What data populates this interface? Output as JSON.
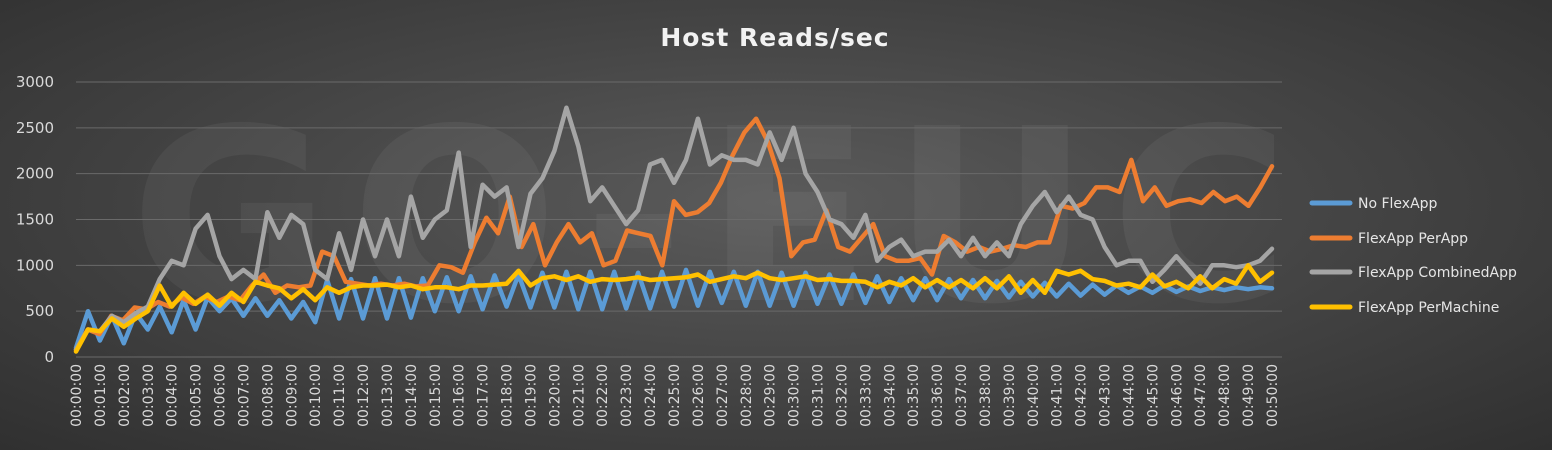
{
  "chart_data": {
    "type": "line",
    "title": "Host Reads/sec",
    "xlabel": "",
    "ylabel": "",
    "ylim": [
      0,
      3000
    ],
    "yticks": [
      0,
      500,
      1000,
      1500,
      2000,
      2500,
      3000
    ],
    "grid": true,
    "legend": "right",
    "x_tick_labels": [
      "00:00:00",
      "00:01:00",
      "00:02:00",
      "00:03:00",
      "00:04:00",
      "00:05:00",
      "00:06:00",
      "00:07:00",
      "00:08:00",
      "00:09:00",
      "00:10:00",
      "00:11:00",
      "00:12:00",
      "00:13:00",
      "00:14:00",
      "00:15:00",
      "00:16:00",
      "00:17:00",
      "00:18:00",
      "00:19:00",
      "00:20:00",
      "00:21:00",
      "00:22:00",
      "00:23:00",
      "00:24:00",
      "00:25:00",
      "00:26:00",
      "00:27:00",
      "00:28:00",
      "00:29:00",
      "00:30:00",
      "00:31:00",
      "00:32:00",
      "00:33:00",
      "00:34:00",
      "00:35:00",
      "00:36:00",
      "00:37:00",
      "00:38:00",
      "00:39:00",
      "00:40:00",
      "00:41:00",
      "00:42:00",
      "00:43:00",
      "00:44:00",
      "00:45:00",
      "00:46:00",
      "00:47:00",
      "00:48:00",
      "00:49:00",
      "00:50:00"
    ],
    "series": [
      {
        "name": "No FlexApp",
        "color": "#5b9bd5",
        "values": [
          100,
          500,
          180,
          450,
          150,
          480,
          300,
          550,
          270,
          620,
          300,
          650,
          500,
          640,
          450,
          640,
          450,
          620,
          420,
          600,
          380,
          840,
          420,
          850,
          420,
          860,
          420,
          860,
          430,
          860,
          500,
          870,
          500,
          880,
          520,
          890,
          550,
          900,
          540,
          920,
          540,
          930,
          520,
          930,
          520,
          930,
          530,
          920,
          530,
          930,
          550,
          950,
          560,
          930,
          590,
          930,
          560,
          930,
          560,
          920,
          560,
          920,
          580,
          900,
          580,
          900,
          590,
          880,
          600,
          860,
          620,
          860,
          620,
          850,
          640,
          840,
          640,
          830,
          650,
          820,
          660,
          810,
          660,
          800,
          670,
          790,
          680,
          780,
          700,
          770,
          700,
          780,
          710,
          770,
          720,
          760,
          730,
          760,
          740,
          760,
          750
        ]
      },
      {
        "name": "FlexApp PerApp",
        "color": "#ed7d31",
        "values": [
          80,
          300,
          250,
          450,
          400,
          540,
          520,
          600,
          550,
          650,
          580,
          660,
          600,
          660,
          620,
          780,
          900,
          700,
          780,
          760,
          780,
          1150,
          1100,
          820,
          800,
          780,
          800,
          780,
          800,
          770,
          780,
          1000,
          980,
          920,
          1250,
          1520,
          1350,
          1750,
          1200,
          1450,
          1000,
          1250,
          1450,
          1250,
          1350,
          1000,
          1050,
          1380,
          1350,
          1320,
          1000,
          1700,
          1550,
          1580,
          1680,
          1900,
          2200,
          2450,
          2600,
          2350,
          1950,
          1100,
          1250,
          1280,
          1600,
          1200,
          1150,
          1300,
          1450,
          1100,
          1050,
          1050,
          1080,
          900,
          1320,
          1250,
          1150,
          1200,
          1150,
          1180,
          1220,
          1200,
          1250,
          1250,
          1650,
          1620,
          1680,
          1850,
          1850,
          1800,
          2150,
          1700,
          1850,
          1650,
          1700,
          1720,
          1680,
          1800,
          1700,
          1750,
          1650,
          1850,
          2080
        ]
      },
      {
        "name": "FlexApp CombinedApp",
        "color": "#a5a5a5",
        "values": [
          80,
          300,
          280,
          450,
          380,
          480,
          550,
          850,
          1050,
          1000,
          1400,
          1550,
          1100,
          850,
          950,
          850,
          1580,
          1300,
          1550,
          1450,
          950,
          850,
          1350,
          950,
          1500,
          1100,
          1500,
          1100,
          1750,
          1300,
          1500,
          1600,
          2230,
          1200,
          1880,
          1750,
          1850,
          1200,
          1780,
          1950,
          2250,
          2720,
          2300,
          1700,
          1850,
          1650,
          1450,
          1600,
          2100,
          2150,
          1900,
          2150,
          2600,
          2100,
          2200,
          2150,
          2150,
          2100,
          2450,
          2150,
          2500,
          2000,
          1800,
          1500,
          1450,
          1300,
          1550,
          1050,
          1200,
          1280,
          1100,
          1150,
          1150,
          1280,
          1100,
          1300,
          1100,
          1250,
          1100,
          1450,
          1650,
          1800,
          1580,
          1750,
          1550,
          1500,
          1200,
          1000,
          1050,
          1050,
          820,
          950,
          1100,
          950,
          800,
          1000,
          1000,
          980,
          1000,
          1050,
          1180
        ]
      },
      {
        "name": "FlexApp PerMachine",
        "color": "#ffc000",
        "values": [
          60,
          300,
          280,
          420,
          330,
          420,
          500,
          780,
          550,
          700,
          580,
          680,
          560,
          700,
          600,
          820,
          780,
          750,
          640,
          740,
          620,
          760,
          700,
          760,
          780,
          780,
          790,
          760,
          780,
          740,
          760,
          760,
          740,
          780,
          780,
          790,
          800,
          940,
          780,
          860,
          880,
          840,
          880,
          820,
          850,
          840,
          850,
          870,
          840,
          850,
          860,
          870,
          900,
          820,
          850,
          880,
          860,
          920,
          860,
          840,
          860,
          880,
          840,
          850,
          830,
          830,
          820,
          760,
          820,
          780,
          860,
          760,
          840,
          760,
          840,
          750,
          860,
          750,
          880,
          700,
          840,
          700,
          940,
          900,
          940,
          850,
          830,
          780,
          800,
          760,
          900,
          770,
          820,
          750,
          880,
          750,
          850,
          800,
          1000,
          820,
          920
        ]
      }
    ]
  }
}
